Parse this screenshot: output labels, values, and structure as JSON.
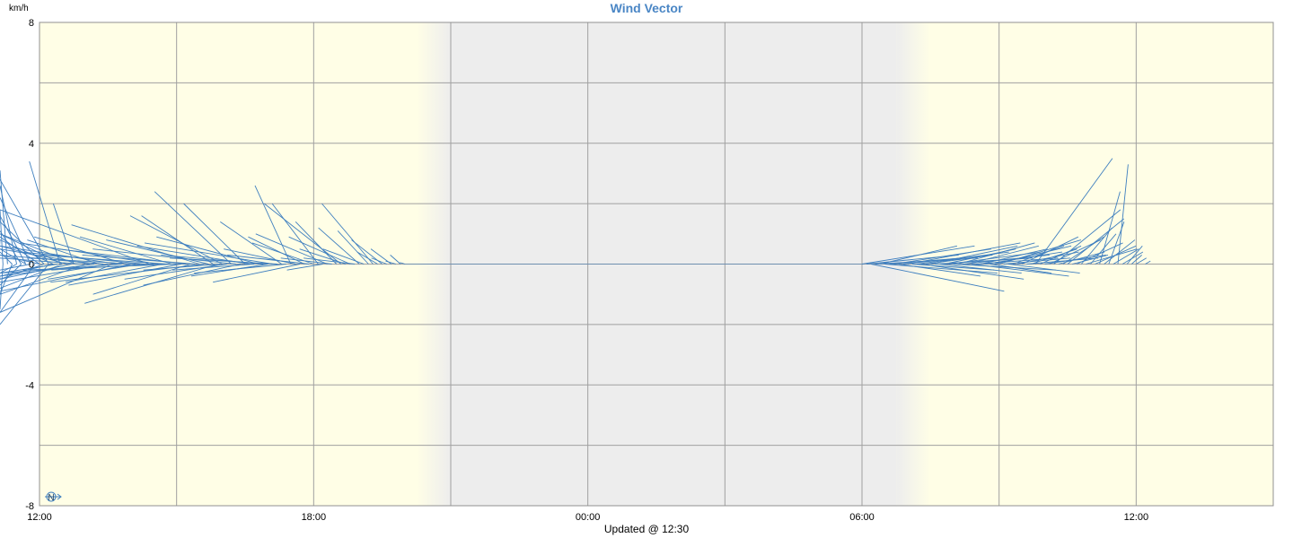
{
  "chart_data": {
    "type": "line",
    "title": "Wind Vector",
    "ylabel": "km/h",
    "ylim": [
      -8,
      8
    ],
    "y_ticks": [
      "8",
      "4",
      "0",
      "-4",
      "-8"
    ],
    "x_ticks": [
      "12:00",
      "18:00",
      "00:00",
      "06:00",
      "12:00"
    ],
    "xlim_hours": [
      0,
      27
    ],
    "footer": "Updated @ 12:30",
    "compass_label": "N",
    "grid": true,
    "series_color": "#3f7fbf",
    "night_band_hours": [
      9.0,
      18.75
    ],
    "vectors_description_unit": "hours since 12:00 start, east-west (u) and north-south (v) in km/h",
    "vectors": [
      {
        "t": -1.0,
        "u": 5.0,
        "v": 0.2
      },
      {
        "t": -0.9,
        "u": 4.5,
        "v": -0.5
      },
      {
        "t": -0.9,
        "u": 3.5,
        "v": 0.8
      },
      {
        "t": -0.8,
        "u": 3.0,
        "v": -1.5
      },
      {
        "t": -0.8,
        "u": 2.6,
        "v": 1.8
      },
      {
        "t": -0.7,
        "u": 1.6,
        "v": 3.1
      },
      {
        "t": -0.6,
        "u": 3.2,
        "v": 0.4
      },
      {
        "t": -0.6,
        "u": 2.8,
        "v": -1.0
      },
      {
        "t": -0.5,
        "u": 1.8,
        "v": 2.6
      },
      {
        "t": -0.5,
        "u": 3.5,
        "v": -0.3
      },
      {
        "t": -0.4,
        "u": 2.3,
        "v": 1.1
      },
      {
        "t": -0.4,
        "u": 2.9,
        "v": -0.7
      },
      {
        "t": -0.3,
        "u": 3.1,
        "v": 0.5
      },
      {
        "t": -0.3,
        "u": 2.0,
        "v": 1.6
      },
      {
        "t": -0.2,
        "u": 3.6,
        "v": -0.2
      },
      {
        "t": -0.2,
        "u": 1.4,
        "v": 2.2
      },
      {
        "t": -0.1,
        "u": 2.7,
        "v": -1.6
      },
      {
        "t": 0.0,
        "u": 2.5,
        "v": 0.9
      },
      {
        "t": 0.0,
        "u": 3.8,
        "v": 0.3
      },
      {
        "t": 0.1,
        "u": 3.0,
        "v": -0.5
      },
      {
        "t": 0.1,
        "u": 2.1,
        "v": 1.4
      },
      {
        "t": 0.2,
        "u": 1.2,
        "v": 2.8
      },
      {
        "t": 0.2,
        "u": 3.3,
        "v": -2.0
      },
      {
        "t": 0.3,
        "u": 1.5,
        "v": 0.8
      },
      {
        "t": 0.3,
        "u": 2.8,
        "v": -0.4
      },
      {
        "t": 0.4,
        "u": 1.8,
        "v": -0.3
      },
      {
        "t": 0.45,
        "u": 0.6,
        "v": 3.4
      },
      {
        "t": 0.5,
        "u": 2.5,
        "v": 1.0
      },
      {
        "t": 0.5,
        "u": 3.0,
        "v": -0.8
      },
      {
        "t": 0.6,
        "u": 2.3,
        "v": 0.6
      },
      {
        "t": 0.7,
        "u": 2.8,
        "v": -0.5
      },
      {
        "t": 0.75,
        "u": 0.4,
        "v": 2.0
      },
      {
        "t": 0.8,
        "u": 2.0,
        "v": 1.0
      },
      {
        "t": 0.9,
        "u": 3.5,
        "v": 0.2
      },
      {
        "t": 1.0,
        "u": 2.6,
        "v": -1.0
      },
      {
        "t": 1.1,
        "u": 2.0,
        "v": 0.5
      },
      {
        "t": 1.2,
        "u": 2.8,
        "v": -0.4
      },
      {
        "t": 1.3,
        "u": 1.4,
        "v": 0.8
      },
      {
        "t": 1.4,
        "u": 3.0,
        "v": 0.3
      },
      {
        "t": 1.5,
        "u": 2.2,
        "v": -0.6
      },
      {
        "t": 1.6,
        "u": 3.4,
        "v": -1.6
      },
      {
        "t": 1.7,
        "u": 3.0,
        "v": 0.6
      },
      {
        "t": 1.8,
        "u": 2.5,
        "v": -0.3
      },
      {
        "t": 1.9,
        "u": 1.8,
        "v": 0.9
      },
      {
        "t": 2.0,
        "u": 2.8,
        "v": -0.9
      },
      {
        "t": 2.1,
        "u": 2.1,
        "v": 0.2
      },
      {
        "t": 2.2,
        "u": 1.8,
        "v": -0.5
      },
      {
        "t": 2.3,
        "u": 2.4,
        "v": 0.4
      },
      {
        "t": 2.4,
        "u": 3.2,
        "v": 1.8
      },
      {
        "t": 2.5,
        "u": 2.0,
        "v": -0.2
      },
      {
        "t": 2.6,
        "u": 2.7,
        "v": 0.7
      },
      {
        "t": 2.7,
        "u": 1.9,
        "v": -0.6
      },
      {
        "t": 2.8,
        "u": 2.5,
        "v": 0.3
      },
      {
        "t": 2.9,
        "u": 1.8,
        "v": 0.9
      },
      {
        "t": 3.0,
        "u": 3.0,
        "v": -0.2
      },
      {
        "t": 3.1,
        "u": 2.2,
        "v": -0.7
      },
      {
        "t": 3.2,
        "u": 2.5,
        "v": 0.5
      },
      {
        "t": 3.3,
        "u": 1.9,
        "v": -1.0
      },
      {
        "t": 3.4,
        "u": 2.2,
        "v": 0.3
      },
      {
        "t": 3.5,
        "u": 2.5,
        "v": 1.3
      },
      {
        "t": 3.6,
        "u": 3.0,
        "v": -0.6
      },
      {
        "t": 3.7,
        "u": 2.0,
        "v": 0.8
      },
      {
        "t": 3.8,
        "u": 1.4,
        "v": 1.6
      },
      {
        "t": 3.9,
        "u": 2.6,
        "v": -1.3
      },
      {
        "t": 3.95,
        "u": 1.5,
        "v": -0.2
      },
      {
        "t": 4.0,
        "u": 1.8,
        "v": 1.6
      },
      {
        "t": 4.1,
        "u": 2.0,
        "v": -0.5
      },
      {
        "t": 4.2,
        "u": 1.5,
        "v": 2.4
      },
      {
        "t": 4.3,
        "u": 2.8,
        "v": 0.5
      },
      {
        "t": 4.4,
        "u": 1.9,
        "v": -0.7
      },
      {
        "t": 4.5,
        "u": 1.2,
        "v": 2.0
      },
      {
        "t": 4.6,
        "u": 2.2,
        "v": 0.6
      },
      {
        "t": 4.7,
        "u": 1.6,
        "v": -0.2
      },
      {
        "t": 4.8,
        "u": 2.0,
        "v": 0.9
      },
      {
        "t": 4.9,
        "u": 2.0,
        "v": 0.3
      },
      {
        "t": 5.0,
        "u": 1.5,
        "v": -0.4
      },
      {
        "t": 5.1,
        "u": 2.5,
        "v": 0.7
      },
      {
        "t": 5.2,
        "u": 2.1,
        "v": 0.2
      },
      {
        "t": 5.3,
        "u": 1.2,
        "v": 1.4
      },
      {
        "t": 5.4,
        "u": 1.8,
        "v": -0.3
      },
      {
        "t": 5.5,
        "u": 0.7,
        "v": 2.6
      },
      {
        "t": 5.6,
        "u": 1.4,
        "v": 0.5
      },
      {
        "t": 5.7,
        "u": 1.7,
        "v": -0.6
      },
      {
        "t": 5.8,
        "u": 1.1,
        "v": 0.9
      },
      {
        "t": 5.9,
        "u": 1.6,
        "v": 0.3
      },
      {
        "t": 6.0,
        "u": 1.2,
        "v": 0.7
      },
      {
        "t": 6.1,
        "u": 0.9,
        "v": 2.0
      },
      {
        "t": 6.2,
        "u": 0.7,
        "v": -0.2
      },
      {
        "t": 6.3,
        "u": 1.4,
        "v": 1.0
      },
      {
        "t": 6.4,
        "u": 1.0,
        "v": 0.2
      },
      {
        "t": 6.5,
        "u": 0.8,
        "v": 1.4
      },
      {
        "t": 6.6,
        "u": 1.5,
        "v": 2.0
      },
      {
        "t": 6.7,
        "u": 0.9,
        "v": 0.5
      },
      {
        "t": 6.8,
        "u": 1.2,
        "v": 0.9
      },
      {
        "t": 6.9,
        "u": 1.0,
        "v": 0.2
      },
      {
        "t": 7.0,
        "u": 0.8,
        "v": 1.2
      },
      {
        "t": 7.1,
        "u": 0.8,
        "v": 0.5
      },
      {
        "t": 7.2,
        "u": 0.6,
        "v": 1.1
      },
      {
        "t": 7.3,
        "u": 1.0,
        "v": 2.0
      },
      {
        "t": 7.4,
        "u": 0.4,
        "v": 0.4
      },
      {
        "t": 7.5,
        "u": 0.6,
        "v": 0.8
      },
      {
        "t": 7.6,
        "u": 0.3,
        "v": 0.2
      },
      {
        "t": 7.7,
        "u": 0.4,
        "v": 0.5
      },
      {
        "t": 7.8,
        "u": 0.2,
        "v": 0.1
      },
      {
        "t": 7.9,
        "u": 0.2,
        "v": 0.3
      },
      {
        "t": 8.0,
        "u": 0.1,
        "v": 0.05
      },
      {
        "t": 18.0,
        "u": -2.2,
        "v": 0.6
      },
      {
        "t": 18.1,
        "u": -1.8,
        "v": 0.3
      },
      {
        "t": 18.2,
        "u": -2.6,
        "v": -0.9
      },
      {
        "t": 18.3,
        "u": -2.0,
        "v": 0.2
      },
      {
        "t": 18.4,
        "u": -1.5,
        "v": 0.6
      },
      {
        "t": 18.5,
        "u": -2.2,
        "v": -0.3
      },
      {
        "t": 18.6,
        "u": -1.4,
        "v": 0.2
      },
      {
        "t": 18.7,
        "u": -1.9,
        "v": 0.5
      },
      {
        "t": 18.8,
        "u": -1.6,
        "v": -0.4
      },
      {
        "t": 18.9,
        "u": -1.7,
        "v": 0.3
      },
      {
        "t": 19.0,
        "u": -2.2,
        "v": 0.7
      },
      {
        "t": 19.1,
        "u": -1.6,
        "v": -0.2
      },
      {
        "t": 19.2,
        "u": -1.8,
        "v": 0.4
      },
      {
        "t": 19.3,
        "u": -2.0,
        "v": -0.5
      },
      {
        "t": 19.4,
        "u": -1.3,
        "v": 0.3
      },
      {
        "t": 19.5,
        "u": -1.7,
        "v": 0.6
      },
      {
        "t": 19.6,
        "u": -1.9,
        "v": 0.2
      },
      {
        "t": 19.7,
        "u": -1.6,
        "v": -0.3
      },
      {
        "t": 19.8,
        "u": -1.4,
        "v": 0.5
      },
      {
        "t": 19.9,
        "u": -1.8,
        "v": 0.4
      },
      {
        "t": 20.0,
        "u": -2.0,
        "v": -0.2
      },
      {
        "t": 20.1,
        "u": -1.5,
        "v": 0.7
      },
      {
        "t": 20.2,
        "u": -1.7,
        "v": 0.3
      },
      {
        "t": 20.3,
        "u": -1.4,
        "v": 0.6
      },
      {
        "t": 20.4,
        "u": -1.9,
        "v": -0.4
      },
      {
        "t": 20.5,
        "u": -1.6,
        "v": 0.2
      },
      {
        "t": 20.6,
        "u": -1.3,
        "v": 0.5
      },
      {
        "t": 20.7,
        "u": -1.5,
        "v": 0.4
      },
      {
        "t": 20.8,
        "u": -1.2,
        "v": -0.3
      },
      {
        "t": 20.9,
        "u": -1.5,
        "v": 0.6
      },
      {
        "t": 21.0,
        "u": -1.6,
        "v": 0.8
      },
      {
        "t": 21.1,
        "u": -1.3,
        "v": 0.2
      },
      {
        "t": 21.2,
        "u": -1.4,
        "v": -0.3
      },
      {
        "t": 21.3,
        "u": -1.0,
        "v": 0.6
      },
      {
        "t": 21.4,
        "u": -1.2,
        "v": 0.4
      },
      {
        "t": 21.5,
        "u": -1.1,
        "v": 0.9
      },
      {
        "t": 21.6,
        "u": -1.4,
        "v": 0.2
      },
      {
        "t": 21.7,
        "u": -0.9,
        "v": 0.5
      },
      {
        "t": 21.8,
        "u": -1.5,
        "v": 3.5
      },
      {
        "t": 21.9,
        "u": -0.8,
        "v": 0.6
      },
      {
        "t": 22.0,
        "u": -1.2,
        "v": 0.3
      },
      {
        "t": 22.1,
        "u": -1.0,
        "v": 0.8
      },
      {
        "t": 22.2,
        "u": -1.3,
        "v": 1.8
      },
      {
        "t": 22.3,
        "u": -0.9,
        "v": 0.4
      },
      {
        "t": 22.4,
        "u": -0.8,
        "v": 0.9
      },
      {
        "t": 22.5,
        "u": -1.1,
        "v": 1.5
      },
      {
        "t": 22.6,
        "u": -0.7,
        "v": 0.3
      },
      {
        "t": 22.7,
        "u": -0.9,
        "v": 0.7
      },
      {
        "t": 22.8,
        "u": -0.6,
        "v": 1.2
      },
      {
        "t": 22.9,
        "u": -1.0,
        "v": 0.5
      },
      {
        "t": 23.0,
        "u": -0.5,
        "v": 1.0
      },
      {
        "t": 23.1,
        "u": -0.8,
        "v": 0.6
      },
      {
        "t": 23.2,
        "u": -0.4,
        "v": 2.4
      },
      {
        "t": 23.3,
        "u": -0.6,
        "v": 0.8
      },
      {
        "t": 23.4,
        "u": -0.3,
        "v": 1.4
      },
      {
        "t": 23.5,
        "u": -0.5,
        "v": 0.5
      },
      {
        "t": 23.6,
        "u": -0.2,
        "v": 3.3
      },
      {
        "t": 23.7,
        "u": -0.4,
        "v": 0.4
      },
      {
        "t": 23.8,
        "u": -0.3,
        "v": 0.6
      },
      {
        "t": 23.9,
        "u": -0.2,
        "v": 0.3
      },
      {
        "t": 24.0,
        "u": -0.2,
        "v": 0.2
      },
      {
        "t": 24.2,
        "u": -0.1,
        "v": 0.1
      }
    ]
  }
}
